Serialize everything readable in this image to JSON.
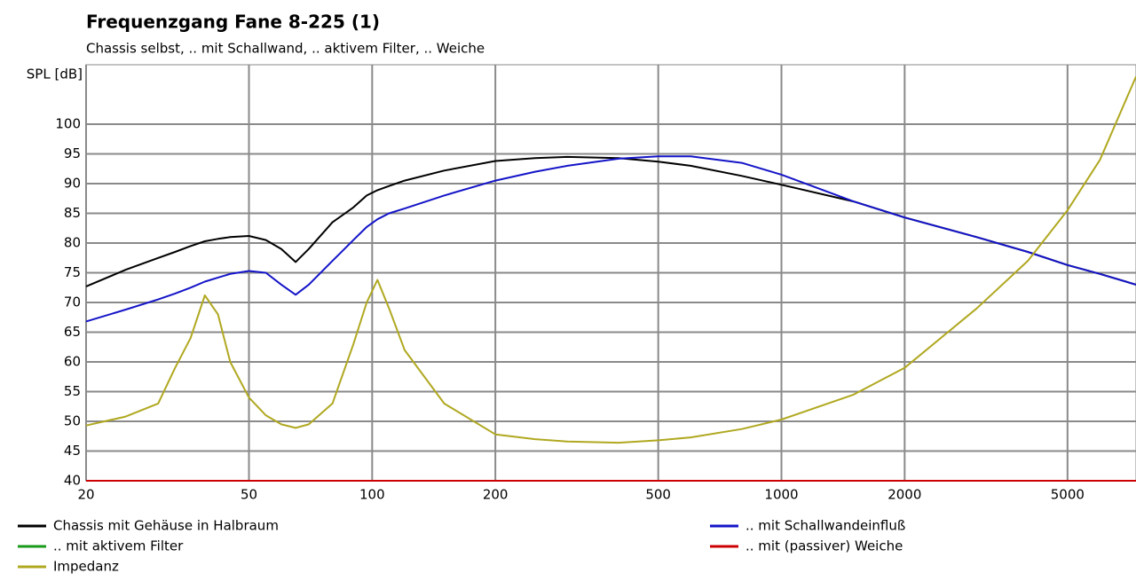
{
  "chart_data": {
    "type": "line",
    "title": "Frequenzgang Fane 8-225 (1)",
    "subtitle": "Chassis selbst, .. mit Schallwand, .. aktivem Filter, .. Weiche",
    "ylabel": "SPL [dB]",
    "x": [
      20,
      25,
      30,
      33,
      36,
      39,
      42,
      45,
      50,
      55,
      60,
      65,
      70,
      80,
      90,
      97,
      103,
      110,
      120,
      150,
      200,
      250,
      300,
      400,
      500,
      600,
      800,
      1000,
      1500,
      2000,
      3000,
      4000,
      5000,
      6000,
      7350
    ],
    "xlim": [
      20,
      7350
    ],
    "xticks": [
      20,
      50,
      100,
      200,
      500,
      1000,
      2000,
      5000
    ],
    "log_x": true,
    "ylim": [
      40,
      110
    ],
    "yticks": [
      40,
      45,
      50,
      55,
      60,
      65,
      70,
      75,
      80,
      85,
      90,
      95,
      100
    ],
    "grid": true,
    "series": [
      {
        "name": "Chassis mit Gehäuse in Halbraum",
        "color": "#000000",
        "values": [
          72.7,
          75.5,
          77.5,
          78.5,
          79.5,
          80.3,
          80.7,
          81,
          81.2,
          80.5,
          79,
          76.8,
          79,
          83.5,
          86,
          88,
          88.9,
          89.6,
          90.5,
          92.2,
          93.8,
          94.3,
          94.5,
          94.3,
          93.7,
          93,
          91.3,
          89.8,
          87,
          84.3,
          81,
          78.5,
          76.3,
          74.8,
          73
        ]
      },
      {
        "name": ".. mit Schallwandeinfluß",
        "color": "#1414c8",
        "values": [
          66.8,
          68.8,
          70.5,
          71.5,
          72.5,
          73.5,
          74.2,
          74.8,
          75.3,
          75,
          73,
          71.3,
          73,
          77,
          80.5,
          82.7,
          84,
          85,
          85.8,
          88,
          90.5,
          92,
          93,
          94.2,
          94.6,
          94.6,
          93.5,
          91.5,
          87,
          84.3,
          81,
          78.5,
          76.3,
          74.8,
          73
        ]
      },
      {
        "name": ".. mit aktivem Filter",
        "color": "#1a9a1a",
        "values": [
          40,
          40,
          40,
          40,
          40,
          40,
          40,
          40,
          40,
          40,
          40,
          40,
          40,
          40,
          40,
          40,
          40,
          40,
          40,
          40,
          40,
          40,
          40,
          40,
          40,
          40,
          40,
          40,
          40,
          40,
          40,
          40,
          40,
          40,
          40
        ]
      },
      {
        "name": ".. mit (passiver) Weiche",
        "color": "#cc0000",
        "values": [
          40,
          40,
          40,
          40,
          40,
          40,
          40,
          40,
          40,
          40,
          40,
          40,
          40,
          40,
          40,
          40,
          40,
          40,
          40,
          40,
          40,
          40,
          40,
          40,
          40,
          40,
          40,
          40,
          40,
          40,
          40,
          40,
          40,
          40,
          40
        ]
      },
      {
        "name": "Impedanz",
        "color": "#b0a820",
        "values": [
          49.3,
          50.8,
          53,
          59,
          64,
          71.2,
          68,
          60,
          54,
          51,
          49.5,
          48.9,
          49.5,
          53,
          63,
          70,
          73.8,
          69,
          62,
          53,
          47.8,
          47,
          46.6,
          46.4,
          46.8,
          47.3,
          48.7,
          50.3,
          54.5,
          59,
          69,
          77,
          85.5,
          94,
          108
        ]
      }
    ]
  }
}
